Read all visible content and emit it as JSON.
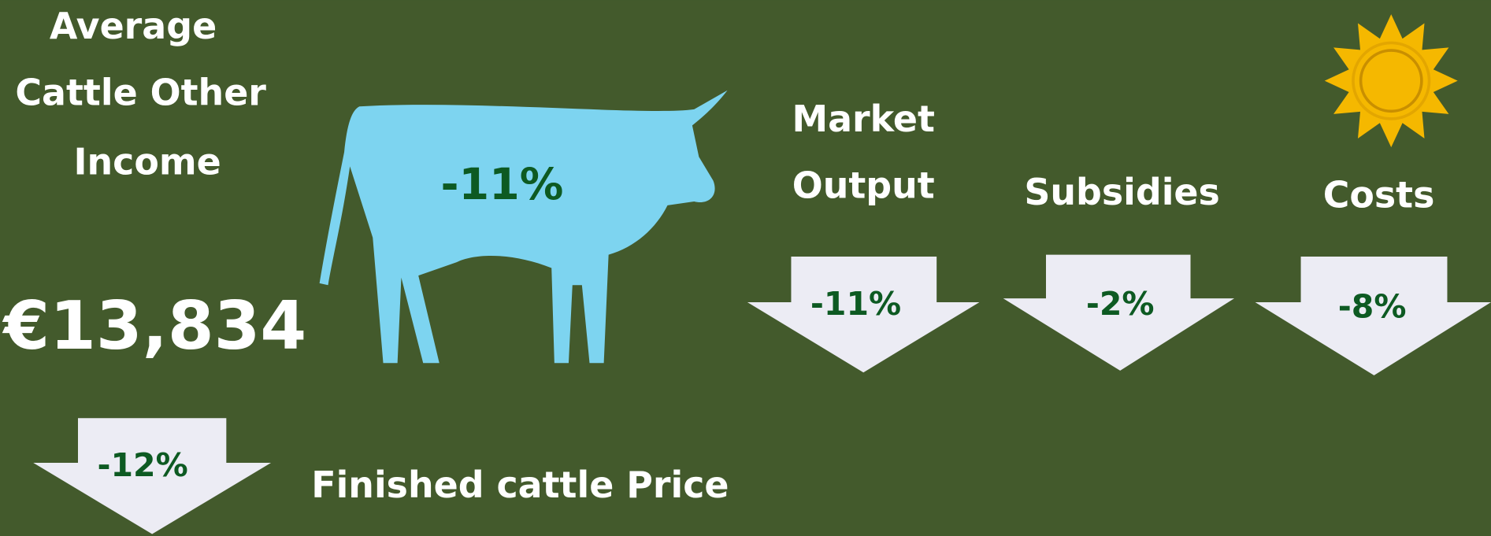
{
  "title_lines": [
    "Average",
    "Cattle Other",
    "Income"
  ],
  "total": "€13,834",
  "overall_change": "-11%",
  "components": [
    {
      "label_lines": [
        "Market",
        "Output"
      ],
      "change": "-11%"
    },
    {
      "label_lines": [
        "Subsidies"
      ],
      "change": "-2%"
    },
    {
      "label_lines": [
        "Costs"
      ],
      "change": "-8%"
    }
  ],
  "price": {
    "label": "Finished cattle Price",
    "change": "-12%"
  }
}
